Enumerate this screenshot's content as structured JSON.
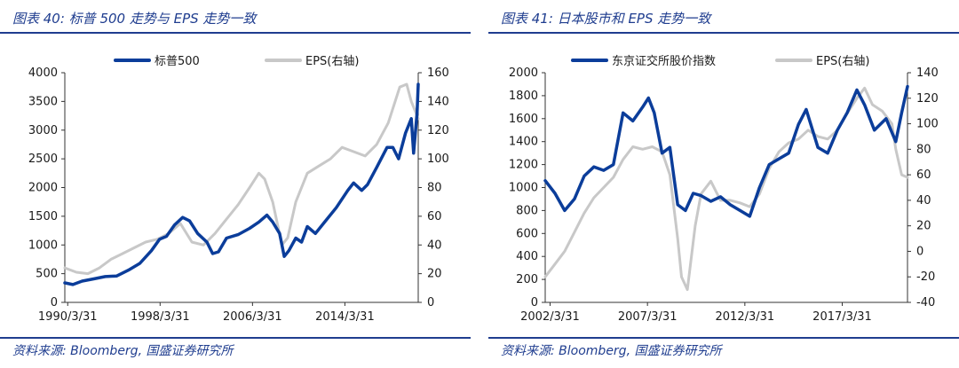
{
  "panels": [
    {
      "title": "图表 40:  标普 500 走势与 EPS 走势一致",
      "source": "资料来源: Bloomberg, 国盛证券研究所"
    },
    {
      "title": "图表 41:  日本股市和 EPS 走势一致",
      "source": "资料来源: Bloomberg, 国盛证券研究所"
    }
  ],
  "colors": {
    "primary": "#0b3d9a",
    "secondary": "#c8c8c8",
    "accent": "#1f3d8f"
  },
  "chart_data": [
    {
      "type": "line",
      "x_ticks": [
        "1990/3/31",
        "1998/3/31",
        "2006/3/31",
        "2014/3/31"
      ],
      "xlim": [
        1990.0,
        2020.6
      ],
      "ylim": [
        0,
        4000
      ],
      "y_ticks": [
        "0",
        "500",
        "1000",
        "1500",
        "2000",
        "2500",
        "3000",
        "3500",
        "4000"
      ],
      "y2lim": [
        0,
        160
      ],
      "y2_ticks": [
        "0",
        "20",
        "40",
        "60",
        "80",
        "100",
        "120",
        "140",
        "160"
      ],
      "legend_position": "top",
      "series": [
        {
          "name": "标普500",
          "axis": "left",
          "color": "#0b3d9a",
          "points": [
            [
              1990.0,
              340
            ],
            [
              1990.7,
              310
            ],
            [
              1991.5,
              370
            ],
            [
              1992.5,
              410
            ],
            [
              1993.5,
              450
            ],
            [
              1994.5,
              460
            ],
            [
              1995.5,
              560
            ],
            [
              1996.5,
              680
            ],
            [
              1997.5,
              900
            ],
            [
              1998.2,
              1100
            ],
            [
              1998.8,
              1150
            ],
            [
              1999.5,
              1350
            ],
            [
              2000.2,
              1480
            ],
            [
              2000.8,
              1420
            ],
            [
              2001.5,
              1200
            ],
            [
              2002.3,
              1050
            ],
            [
              2002.8,
              850
            ],
            [
              2003.3,
              880
            ],
            [
              2004.0,
              1120
            ],
            [
              2005.0,
              1180
            ],
            [
              2006.0,
              1290
            ],
            [
              2006.8,
              1400
            ],
            [
              2007.5,
              1520
            ],
            [
              2008.0,
              1400
            ],
            [
              2008.6,
              1200
            ],
            [
              2009.0,
              800
            ],
            [
              2009.4,
              900
            ],
            [
              2010.0,
              1120
            ],
            [
              2010.5,
              1050
            ],
            [
              2011.0,
              1320
            ],
            [
              2011.7,
              1200
            ],
            [
              2012.5,
              1400
            ],
            [
              2013.5,
              1650
            ],
            [
              2014.5,
              1950
            ],
            [
              2015.0,
              2080
            ],
            [
              2015.7,
              1950
            ],
            [
              2016.2,
              2050
            ],
            [
              2017.0,
              2350
            ],
            [
              2017.9,
              2700
            ],
            [
              2018.4,
              2700
            ],
            [
              2018.9,
              2500
            ],
            [
              2019.5,
              2950
            ],
            [
              2020.0,
              3200
            ],
            [
              2020.2,
              2600
            ],
            [
              2020.5,
              3300
            ],
            [
              2020.6,
              3800
            ]
          ]
        },
        {
          "name": "EPS(右轴)",
          "axis": "right",
          "color": "#c8c8c8",
          "points": [
            [
              1990.0,
              24
            ],
            [
              1991.0,
              21
            ],
            [
              1992.0,
              20
            ],
            [
              1993.0,
              24
            ],
            [
              1994.0,
              30
            ],
            [
              1995.0,
              34
            ],
            [
              1996.0,
              38
            ],
            [
              1997.0,
              42
            ],
            [
              1998.0,
              44
            ],
            [
              1999.0,
              48
            ],
            [
              2000.0,
              55
            ],
            [
              2001.0,
              42
            ],
            [
              2002.0,
              40
            ],
            [
              2003.0,
              48
            ],
            [
              2004.0,
              58
            ],
            [
              2005.0,
              68
            ],
            [
              2006.0,
              80
            ],
            [
              2006.8,
              90
            ],
            [
              2007.3,
              86
            ],
            [
              2008.0,
              70
            ],
            [
              2008.8,
              40
            ],
            [
              2009.3,
              45
            ],
            [
              2010.0,
              70
            ],
            [
              2011.0,
              90
            ],
            [
              2012.0,
              95
            ],
            [
              2013.0,
              100
            ],
            [
              2014.0,
              108
            ],
            [
              2015.0,
              105
            ],
            [
              2016.0,
              102
            ],
            [
              2017.0,
              110
            ],
            [
              2018.0,
              125
            ],
            [
              2019.0,
              150
            ],
            [
              2019.6,
              152
            ],
            [
              2020.0,
              140
            ],
            [
              2020.6,
              128
            ]
          ]
        }
      ]
    },
    {
      "type": "line",
      "x_ticks": [
        "2002/3/31",
        "2007/3/31",
        "2012/3/31",
        "2017/3/31"
      ],
      "xlim": [
        2002.0,
        2020.6
      ],
      "ylim": [
        0,
        2000
      ],
      "y_ticks": [
        "0",
        "200",
        "400",
        "600",
        "800",
        "1000",
        "1200",
        "1400",
        "1600",
        "1800",
        "2000"
      ],
      "y2lim": [
        -40,
        140
      ],
      "y2_ticks": [
        "-40",
        "-20",
        "0",
        "20",
        "40",
        "60",
        "80",
        "100",
        "120",
        "140"
      ],
      "legend_position": "top",
      "series": [
        {
          "name": "东京证交所股价指数",
          "axis": "left",
          "color": "#0b3d9a",
          "points": [
            [
              2002.0,
              1060
            ],
            [
              2002.5,
              950
            ],
            [
              2003.0,
              800
            ],
            [
              2003.5,
              900
            ],
            [
              2004.0,
              1100
            ],
            [
              2004.5,
              1180
            ],
            [
              2005.0,
              1150
            ],
            [
              2005.5,
              1200
            ],
            [
              2006.0,
              1650
            ],
            [
              2006.5,
              1580
            ],
            [
              2007.0,
              1700
            ],
            [
              2007.3,
              1780
            ],
            [
              2007.6,
              1650
            ],
            [
              2008.0,
              1300
            ],
            [
              2008.4,
              1350
            ],
            [
              2008.8,
              850
            ],
            [
              2009.2,
              800
            ],
            [
              2009.6,
              950
            ],
            [
              2010.0,
              930
            ],
            [
              2010.5,
              880
            ],
            [
              2011.0,
              920
            ],
            [
              2011.5,
              850
            ],
            [
              2012.0,
              800
            ],
            [
              2012.5,
              750
            ],
            [
              2013.0,
              1000
            ],
            [
              2013.5,
              1200
            ],
            [
              2014.0,
              1250
            ],
            [
              2014.5,
              1300
            ],
            [
              2015.0,
              1550
            ],
            [
              2015.4,
              1680
            ],
            [
              2016.0,
              1350
            ],
            [
              2016.5,
              1300
            ],
            [
              2017.0,
              1500
            ],
            [
              2017.5,
              1650
            ],
            [
              2018.0,
              1850
            ],
            [
              2018.4,
              1720
            ],
            [
              2018.9,
              1500
            ],
            [
              2019.5,
              1600
            ],
            [
              2020.0,
              1400
            ],
            [
              2020.3,
              1650
            ],
            [
              2020.6,
              1880
            ]
          ]
        },
        {
          "name": "EPS(右轴)",
          "axis": "right",
          "color": "#c8c8c8",
          "points": [
            [
              2002.0,
              -20
            ],
            [
              2002.5,
              -10
            ],
            [
              2003.0,
              0
            ],
            [
              2003.5,
              15
            ],
            [
              2004.0,
              30
            ],
            [
              2004.5,
              42
            ],
            [
              2005.0,
              50
            ],
            [
              2005.5,
              58
            ],
            [
              2006.0,
              72
            ],
            [
              2006.5,
              82
            ],
            [
              2007.0,
              80
            ],
            [
              2007.5,
              82
            ],
            [
              2008.0,
              78
            ],
            [
              2008.4,
              60
            ],
            [
              2008.8,
              10
            ],
            [
              2009.0,
              -20
            ],
            [
              2009.3,
              -30
            ],
            [
              2009.7,
              20
            ],
            [
              2010.0,
              45
            ],
            [
              2010.5,
              55
            ],
            [
              2011.0,
              40
            ],
            [
              2011.5,
              40
            ],
            [
              2012.0,
              38
            ],
            [
              2012.5,
              35
            ],
            [
              2013.0,
              45
            ],
            [
              2013.5,
              65
            ],
            [
              2014.0,
              78
            ],
            [
              2014.5,
              85
            ],
            [
              2015.0,
              88
            ],
            [
              2015.5,
              95
            ],
            [
              2016.0,
              90
            ],
            [
              2016.5,
              88
            ],
            [
              2017.0,
              95
            ],
            [
              2017.5,
              108
            ],
            [
              2018.0,
              120
            ],
            [
              2018.4,
              128
            ],
            [
              2018.8,
              115
            ],
            [
              2019.3,
              110
            ],
            [
              2019.8,
              100
            ],
            [
              2020.0,
              80
            ],
            [
              2020.3,
              60
            ],
            [
              2020.6,
              58
            ]
          ]
        }
      ]
    }
  ]
}
